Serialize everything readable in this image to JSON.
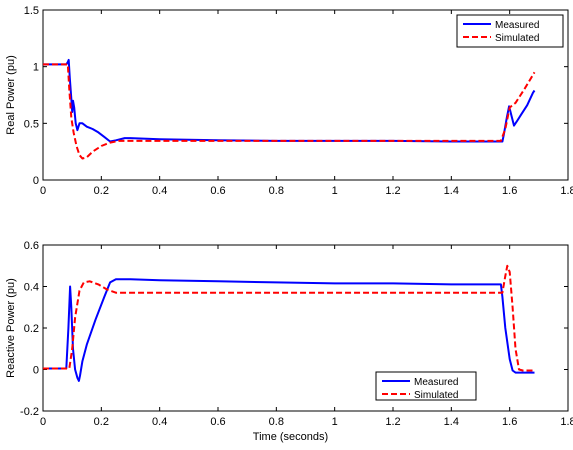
{
  "chart_data": [
    {
      "type": "line",
      "xlabel": "",
      "ylabel": "Real Power (pu)",
      "xlim": [
        0,
        1.8
      ],
      "ylim": [
        0,
        1.5
      ],
      "xticks": [
        0,
        0.2,
        0.4,
        0.6,
        0.8,
        1,
        1.2,
        1.4,
        1.6,
        1.8
      ],
      "yticks": [
        0,
        0.5,
        1,
        1.5
      ],
      "xtick_labels": [
        "0",
        "0.2",
        "0.4",
        "0.6",
        "0.8",
        "1",
        "1.2",
        "1.4",
        "1.6",
        "1.8"
      ],
      "ytick_labels": [
        "0",
        "0.5",
        "1",
        "1.5"
      ],
      "grid": false,
      "legend": "top-right",
      "series": [
        {
          "name": "Measured",
          "color": "#0000ff",
          "style": "solid",
          "points": [
            [
              0,
              1.02
            ],
            [
              0.08,
              1.02
            ],
            [
              0.085,
              1.04
            ],
            [
              0.088,
              1.06
            ],
            [
              0.092,
              0.9
            ],
            [
              0.097,
              0.72
            ],
            [
              0.1,
              0.6
            ],
            [
              0.103,
              0.7
            ],
            [
              0.107,
              0.64
            ],
            [
              0.112,
              0.5
            ],
            [
              0.118,
              0.44
            ],
            [
              0.125,
              0.5
            ],
            [
              0.135,
              0.5
            ],
            [
              0.15,
              0.47
            ],
            [
              0.17,
              0.45
            ],
            [
              0.19,
              0.42
            ],
            [
              0.21,
              0.38
            ],
            [
              0.23,
              0.34
            ],
            [
              0.25,
              0.35
            ],
            [
              0.28,
              0.37
            ],
            [
              0.3,
              0.37
            ],
            [
              0.4,
              0.36
            ],
            [
              0.6,
              0.35
            ],
            [
              0.8,
              0.345
            ],
            [
              1.0,
              0.345
            ],
            [
              1.2,
              0.345
            ],
            [
              1.4,
              0.34
            ],
            [
              1.55,
              0.34
            ],
            [
              1.575,
              0.34
            ],
            [
              1.58,
              0.4
            ],
            [
              1.59,
              0.55
            ],
            [
              1.598,
              0.65
            ],
            [
              1.605,
              0.58
            ],
            [
              1.615,
              0.48
            ],
            [
              1.625,
              0.52
            ],
            [
              1.64,
              0.58
            ],
            [
              1.66,
              0.66
            ],
            [
              1.68,
              0.77
            ],
            [
              1.685,
              0.79
            ]
          ]
        },
        {
          "name": "Simulated",
          "color": "#ff0000",
          "style": "dashed",
          "points": [
            [
              0,
              1.02
            ],
            [
              0.085,
              1.02
            ],
            [
              0.09,
              0.8
            ],
            [
              0.097,
              0.55
            ],
            [
              0.105,
              0.42
            ],
            [
              0.115,
              0.3
            ],
            [
              0.125,
              0.22
            ],
            [
              0.135,
              0.19
            ],
            [
              0.15,
              0.2
            ],
            [
              0.17,
              0.25
            ],
            [
              0.2,
              0.3
            ],
            [
              0.23,
              0.33
            ],
            [
              0.26,
              0.345
            ],
            [
              0.3,
              0.345
            ],
            [
              0.5,
              0.345
            ],
            [
              0.8,
              0.345
            ],
            [
              1.1,
              0.345
            ],
            [
              1.4,
              0.345
            ],
            [
              1.57,
              0.345
            ],
            [
              1.585,
              0.45
            ],
            [
              1.6,
              0.64
            ],
            [
              1.62,
              0.68
            ],
            [
              1.65,
              0.8
            ],
            [
              1.685,
              0.95
            ]
          ]
        }
      ]
    },
    {
      "type": "line",
      "xlabel": "Time (seconds)",
      "ylabel": "Reactive Power (pu)",
      "xlim": [
        0,
        1.8
      ],
      "ylim": [
        -0.2,
        0.6
      ],
      "xticks": [
        0,
        0.2,
        0.4,
        0.6,
        0.8,
        1,
        1.2,
        1.4,
        1.6,
        1.8
      ],
      "yticks": [
        -0.2,
        0,
        0.2,
        0.4,
        0.6
      ],
      "xtick_labels": [
        "0",
        "0.2",
        "0.4",
        "0.6",
        "0.8",
        "1",
        "1.2",
        "1.4",
        "1.6",
        "1.8"
      ],
      "ytick_labels": [
        "-0.2",
        "0",
        "0.2",
        "0.4",
        "0.6"
      ],
      "grid": false,
      "legend": "bottom-right",
      "series": [
        {
          "name": "Measured",
          "color": "#0000ff",
          "style": "solid",
          "points": [
            [
              0,
              0.005
            ],
            [
              0.08,
              0.005
            ],
            [
              0.087,
              0.2
            ],
            [
              0.093,
              0.4
            ],
            [
              0.097,
              0.3
            ],
            [
              0.103,
              0.1
            ],
            [
              0.11,
              0.0
            ],
            [
              0.118,
              -0.04
            ],
            [
              0.123,
              -0.055
            ],
            [
              0.127,
              -0.03
            ],
            [
              0.135,
              0.04
            ],
            [
              0.15,
              0.12
            ],
            [
              0.18,
              0.24
            ],
            [
              0.21,
              0.35
            ],
            [
              0.23,
              0.42
            ],
            [
              0.25,
              0.435
            ],
            [
              0.3,
              0.435
            ],
            [
              0.4,
              0.43
            ],
            [
              0.6,
              0.425
            ],
            [
              0.8,
              0.42
            ],
            [
              1.0,
              0.415
            ],
            [
              1.2,
              0.415
            ],
            [
              1.4,
              0.41
            ],
            [
              1.55,
              0.41
            ],
            [
              1.57,
              0.41
            ],
            [
              1.575,
              0.35
            ],
            [
              1.585,
              0.2
            ],
            [
              1.6,
              0.05
            ],
            [
              1.61,
              -0.005
            ],
            [
              1.62,
              -0.015
            ],
            [
              1.685,
              -0.015
            ]
          ]
        },
        {
          "name": "Simulated",
          "color": "#ff0000",
          "style": "dashed",
          "points": [
            [
              0,
              0.005
            ],
            [
              0.09,
              0.005
            ],
            [
              0.1,
              0.1
            ],
            [
              0.11,
              0.25
            ],
            [
              0.125,
              0.38
            ],
            [
              0.14,
              0.42
            ],
            [
              0.16,
              0.425
            ],
            [
              0.19,
              0.41
            ],
            [
              0.22,
              0.385
            ],
            [
              0.25,
              0.37
            ],
            [
              0.3,
              0.37
            ],
            [
              0.6,
              0.37
            ],
            [
              1.0,
              0.37
            ],
            [
              1.4,
              0.37
            ],
            [
              1.575,
              0.37
            ],
            [
              1.585,
              0.45
            ],
            [
              1.592,
              0.5
            ],
            [
              1.6,
              0.47
            ],
            [
              1.61,
              0.3
            ],
            [
              1.62,
              0.1
            ],
            [
              1.632,
              0.0
            ],
            [
              1.645,
              -0.005
            ],
            [
              1.685,
              -0.005
            ]
          ]
        }
      ]
    }
  ]
}
